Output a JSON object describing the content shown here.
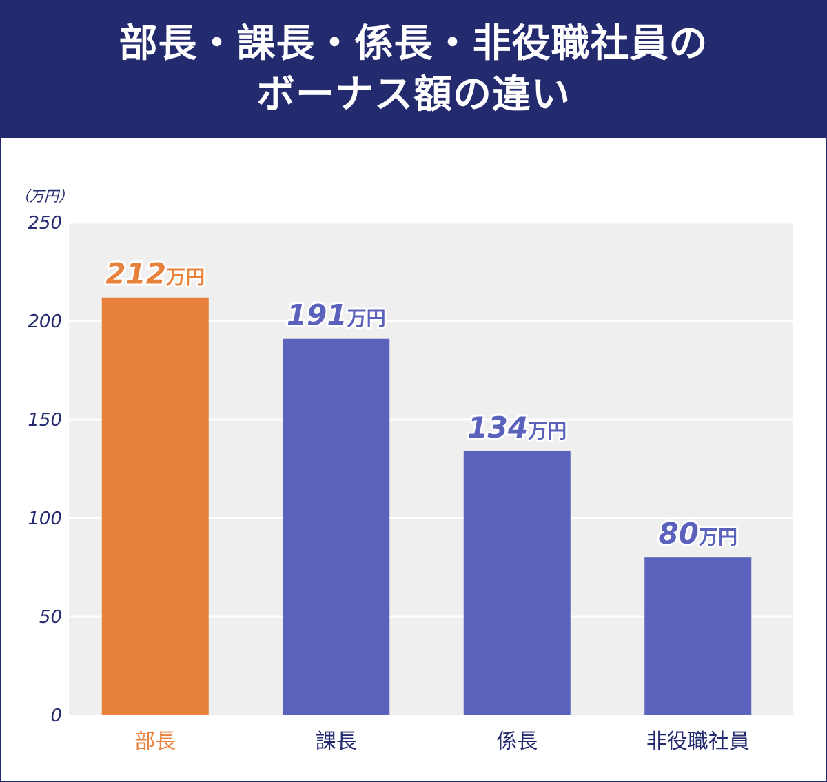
{
  "title": {
    "line1": "部長・課長・係長・非役職社員の",
    "line2": "ボーナス額の違い"
  },
  "colors": {
    "header_bg": "#232a6e",
    "plot_bg": "#efefef",
    "highlight": "#e8813c",
    "bar": "#5b62bb",
    "axis_text": "#232a6e"
  },
  "chart_data": {
    "type": "bar",
    "unit_label": "（万円）",
    "categories": [
      "部長",
      "課長",
      "係長",
      "非役職社員"
    ],
    "values": [
      212,
      191,
      134,
      80
    ],
    "value_labels": [
      "212",
      "191",
      "134",
      "80"
    ],
    "value_suffix": "万円",
    "highlight_index": 0,
    "ylim": [
      0,
      250
    ],
    "yticks": [
      "0",
      "50",
      "100",
      "150",
      "200",
      "250"
    ],
    "grid": true,
    "legend": "none"
  }
}
